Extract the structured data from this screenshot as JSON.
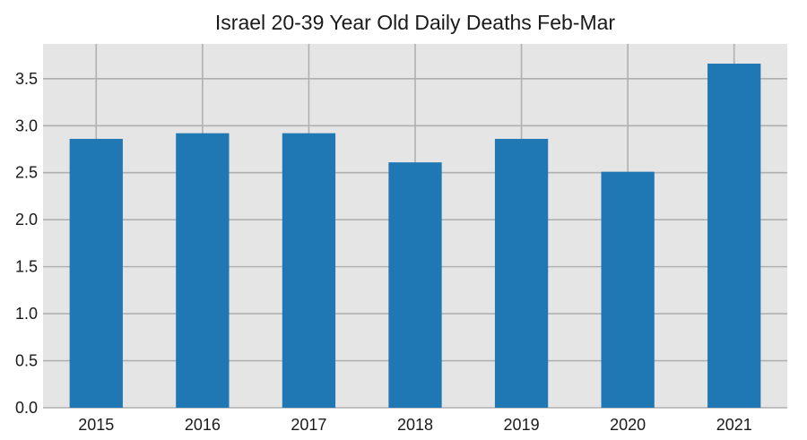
{
  "chart_data": {
    "type": "bar",
    "title": "Israel 20-39 Year Old Daily Deaths Feb-Mar",
    "xlabel": "",
    "ylabel": "",
    "categories": [
      "2015",
      "2016",
      "2017",
      "2018",
      "2019",
      "2020",
      "2021"
    ],
    "values": [
      2.86,
      2.92,
      2.92,
      2.61,
      2.86,
      2.51,
      3.66
    ],
    "ylim": [
      0,
      3.87
    ],
    "yticks": [
      0.0,
      0.5,
      1.0,
      1.5,
      2.0,
      2.5,
      3.0,
      3.5
    ],
    "ytick_labels": [
      "0.0",
      "0.5",
      "1.0",
      "1.5",
      "2.0",
      "2.5",
      "3.0",
      "3.5"
    ],
    "grid": true,
    "legend": "none",
    "colors": {
      "bar": "#1f77b4",
      "plot_background": "#e5e5e5",
      "grid": "#b0b0b0"
    }
  }
}
